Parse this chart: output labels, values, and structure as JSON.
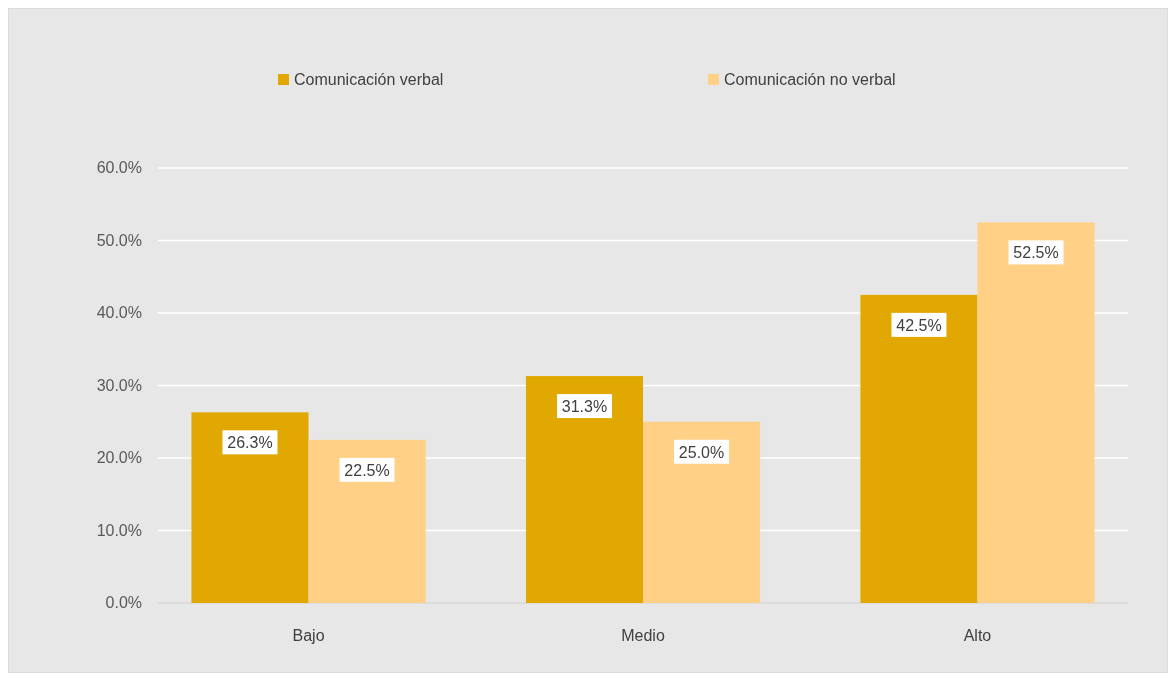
{
  "chart_data": {
    "type": "bar",
    "categories": [
      "Bajo",
      "Medio",
      "Alto"
    ],
    "series": [
      {
        "name": "Comunicación verbal",
        "color": "#e0a800",
        "values": [
          26.3,
          31.3,
          42.5
        ],
        "value_labels": [
          "26.3%",
          "31.3%",
          "42.5%"
        ]
      },
      {
        "name": "Comunicación no verbal",
        "color": "#ffd085",
        "values": [
          22.5,
          25.0,
          52.5
        ],
        "value_labels": [
          "22.5%",
          "25.0%",
          "52.5%"
        ]
      }
    ],
    "ylim": [
      0,
      60
    ],
    "yticks": [
      {
        "value": 0,
        "label": "0.0%"
      },
      {
        "value": 10,
        "label": "10.0%"
      },
      {
        "value": 20,
        "label": "20.0%"
      },
      {
        "value": 30,
        "label": "30.0%"
      },
      {
        "value": 40,
        "label": "40.0%"
      },
      {
        "value": 50,
        "label": "50.0%"
      },
      {
        "value": 60,
        "label": "60.0%"
      }
    ],
    "grid": "y",
    "legend": "top"
  }
}
